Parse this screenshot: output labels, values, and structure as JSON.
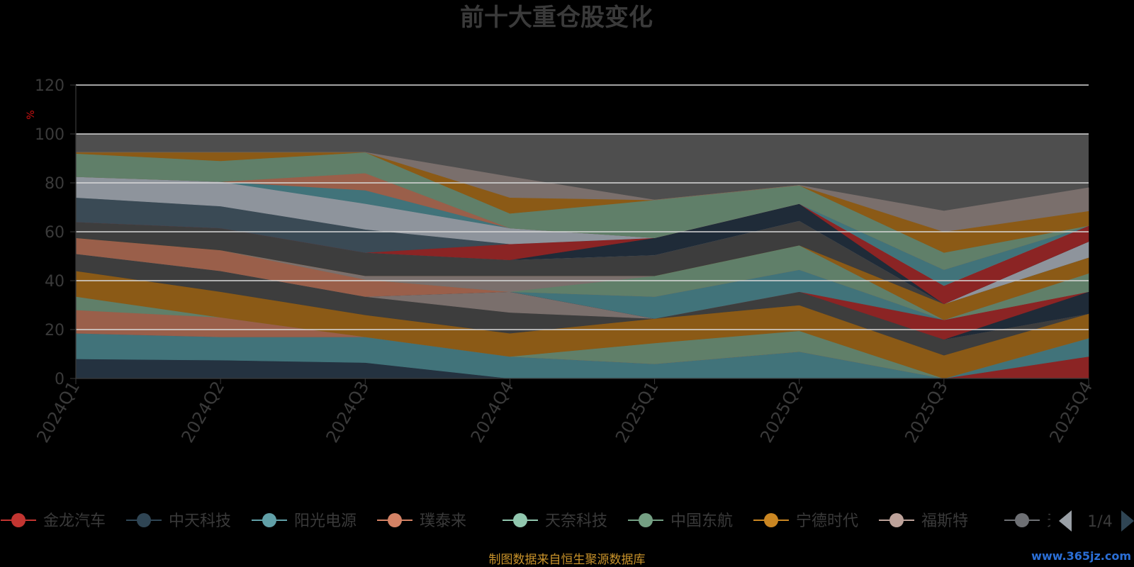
{
  "chart_data": {
    "type": "area",
    "title": "前十大重仓股变化",
    "ylabel": "%",
    "ylim": [
      0,
      120
    ],
    "y_ticks": [
      "0",
      "20",
      "40",
      "60",
      "80",
      "100",
      "120"
    ],
    "categories": [
      "2024Q1",
      "2024Q2",
      "2024Q3",
      "2024Q4",
      "2025Q1",
      "2025Q2",
      "2025Q3",
      "2025Q4"
    ],
    "total_band": [
      100,
      100,
      100,
      100,
      100,
      100,
      100,
      100
    ],
    "series": [
      {
        "color": "#243240",
        "values": [
          8,
          7.5,
          6.5,
          0,
          0,
          0,
          0,
          0
        ]
      },
      {
        "color": "#41737a",
        "values": [
          10.5,
          9.5,
          10.5,
          9,
          6,
          11,
          0,
          0
        ]
      },
      {
        "color": "#8b2424",
        "values": [
          0,
          0,
          0,
          0,
          0,
          0,
          0,
          9
        ]
      },
      {
        "color": "#41737a",
        "values": [
          0,
          0,
          0,
          0,
          0,
          0,
          0,
          7.5
        ]
      },
      {
        "color": "#9a5f4a",
        "values": [
          9.5,
          8,
          0,
          0,
          0,
          0,
          0,
          0
        ]
      },
      {
        "color": "#607f69",
        "values": [
          5.5,
          0,
          0,
          0,
          8.5,
          8.5,
          0,
          0
        ]
      },
      {
        "color": "#8b5a16",
        "values": [
          10.5,
          10.5,
          9,
          9.5,
          10,
          10.5,
          9.5,
          10
        ]
      },
      {
        "color": "#3d3d3d",
        "values": [
          7,
          8.5,
          7.5,
          8.5,
          0,
          5.5,
          6.5,
          0
        ]
      },
      {
        "color": "#7a6f6c",
        "values": [
          0,
          0,
          0,
          8.5,
          0,
          0,
          0,
          0
        ]
      },
      {
        "color": "#1f2b38",
        "values": [
          0,
          0,
          0,
          0,
          0,
          0,
          0,
          9
        ]
      },
      {
        "color": "#8b2424",
        "values": [
          0,
          0,
          0,
          0,
          0,
          0,
          8,
          0
        ]
      },
      {
        "color": "#41737a",
        "values": [
          0,
          0,
          0,
          0,
          9,
          9,
          0,
          0
        ]
      },
      {
        "color": "#9a5f4a",
        "values": [
          6.5,
          8.5,
          7,
          0,
          0,
          0,
          0,
          0
        ]
      },
      {
        "color": "#607f69",
        "values": [
          0,
          0,
          0,
          0,
          8.5,
          10,
          0,
          7.5
        ]
      },
      {
        "color": "#7a6f6c",
        "values": [
          0,
          0,
          1.5,
          6.5,
          0,
          0,
          0,
          0
        ]
      },
      {
        "color": "#8b5a16",
        "values": [
          0,
          0,
          0,
          0,
          0,
          0,
          6.5,
          6.5
        ]
      },
      {
        "color": "#3d3d3d",
        "values": [
          6.5,
          9,
          9.5,
          6.5,
          8.5,
          10,
          0,
          0
        ]
      },
      {
        "color": "#8e949c",
        "values": [
          0,
          0,
          0,
          0,
          0,
          0,
          0,
          6.5
        ]
      },
      {
        "color": "#1f2b38",
        "values": [
          0,
          0,
          0,
          0,
          7,
          7,
          0,
          0
        ]
      },
      {
        "color": "#8b2424",
        "values": [
          0,
          0,
          0,
          6.5,
          0,
          0,
          7.5,
          6.5
        ]
      },
      {
        "color": "#3a4a55",
        "values": [
          10,
          9,
          9.5,
          0,
          0,
          0,
          0,
          0
        ]
      },
      {
        "color": "#8e949c",
        "values": [
          8.5,
          10,
          10.5,
          6.5,
          0,
          0,
          0,
          0
        ]
      },
      {
        "color": "#41737a",
        "values": [
          0,
          0,
          5.5,
          0,
          0,
          0,
          6.5,
          0
        ]
      },
      {
        "color": "#9a5f4a",
        "values": [
          0,
          0,
          7,
          0,
          0,
          0,
          0,
          0
        ]
      },
      {
        "color": "#607f69",
        "values": [
          9.5,
          8.5,
          8.5,
          6,
          15.5,
          7.5,
          7,
          0
        ]
      },
      {
        "color": "#8b5a16",
        "values": [
          0.5,
          3.5,
          0,
          6.5,
          0,
          0,
          8.5,
          6
        ]
      },
      {
        "color": "#7a6f6c",
        "values": [
          0,
          0,
          0,
          8.5,
          0,
          0,
          8.5,
          9.5
        ]
      }
    ],
    "legend": [
      {
        "label": "金龙汽车",
        "color": "#c23531"
      },
      {
        "label": "中天科技",
        "color": "#2f4554"
      },
      {
        "label": "阳光电源",
        "color": "#61a0a8"
      },
      {
        "label": "璞泰来",
        "color": "#d48265"
      },
      {
        "label": "天奈科技",
        "color": "#91c7ae"
      },
      {
        "label": "中国东航",
        "color": "#749f83"
      },
      {
        "label": "宁德时代",
        "color": "#ca8622"
      },
      {
        "label": "福斯特",
        "color": "#bda29a"
      },
      {
        "label": "天赐材料",
        "color": "#6e7074"
      }
    ],
    "legend_position": "bottom",
    "legend_page": "1/4"
  },
  "footer": {
    "source_note": "制图数据来自恒生聚源数据库",
    "watermark": "www.365jz.com"
  },
  "colors": {
    "band": "#4e4e4e",
    "grid": "#d8d8d8",
    "footer": "#c8922a",
    "watermark": "#2b6fd6",
    "ylabel": "#cc1111",
    "arrow_inactive": "#9aa0a6",
    "arrow_active": "#2f4554"
  }
}
